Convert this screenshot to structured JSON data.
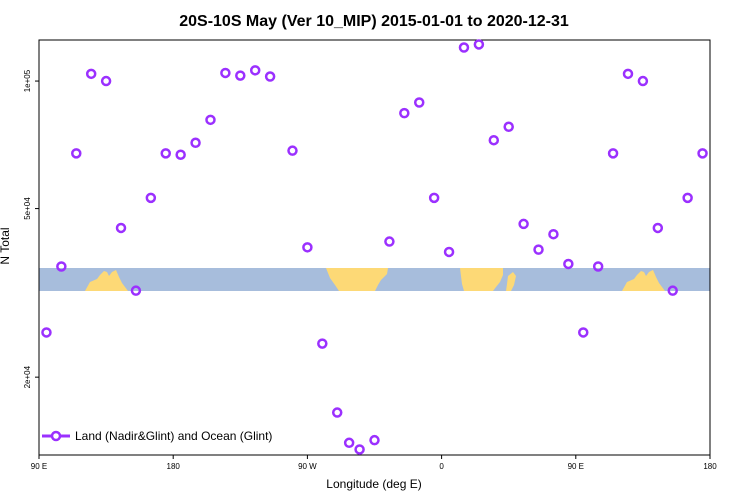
{
  "chart_data": {
    "type": "scatter",
    "title": "20S-10S May (Ver 10_MIP)   2015-01-01 to 2020-12-31",
    "xlabel": "Longitude (deg E)",
    "ylabel": "N Total",
    "x_scale": "linear",
    "y_scale": "log",
    "xlim": [
      90,
      540
    ],
    "ylim": [
      13100,
      125000
    ],
    "x_ticks": [
      {
        "value": 90,
        "label": "90 E"
      },
      {
        "value": 180,
        "label": "180"
      },
      {
        "value": 270,
        "label": "90 W"
      },
      {
        "value": 360,
        "label": "0"
      },
      {
        "value": 450,
        "label": "90 E"
      },
      {
        "value": 540,
        "label": "180"
      }
    ],
    "y_ticks": [
      {
        "value": 20000,
        "label": "2e+04"
      },
      {
        "value": 50000,
        "label": "5e+04"
      },
      {
        "value": 100000,
        "label": "1e+05"
      }
    ],
    "grid": false,
    "legend_position": "bottom-left",
    "series": [
      {
        "name": "Land (Nadir&Glint) and Ocean (Glint)",
        "color": "#9b30ff",
        "marker": "open-circle",
        "points": [
          [
            95,
            25500
          ],
          [
            105,
            36500
          ],
          [
            115,
            67500
          ],
          [
            125,
            104000
          ],
          [
            135,
            100000
          ],
          [
            145,
            45000
          ],
          [
            155,
            32000
          ],
          [
            165,
            53000
          ],
          [
            175,
            67500
          ],
          [
            185,
            67000
          ],
          [
            195,
            71500
          ],
          [
            205,
            81000
          ],
          [
            215,
            104500
          ],
          [
            225,
            103000
          ],
          [
            235,
            106000
          ],
          [
            245,
            102500
          ],
          [
            260,
            68500
          ],
          [
            270,
            40500
          ],
          [
            280,
            24000
          ],
          [
            290,
            16500
          ],
          [
            298,
            14000
          ],
          [
            305,
            13500
          ],
          [
            315,
            14200
          ],
          [
            325,
            41800
          ],
          [
            335,
            84000
          ],
          [
            345,
            89000
          ],
          [
            355,
            53000
          ],
          [
            365,
            39500
          ],
          [
            375,
            120000
          ],
          [
            385,
            122000
          ],
          [
            395,
            72500
          ],
          [
            405,
            78000
          ],
          [
            415,
            46000
          ],
          [
            425,
            40000
          ],
          [
            435,
            43500
          ],
          [
            445,
            37000
          ],
          [
            455,
            25500
          ],
          [
            465,
            36500
          ],
          [
            475,
            67500
          ],
          [
            485,
            104000
          ],
          [
            495,
            100000
          ],
          [
            505,
            45000
          ],
          [
            515,
            32000
          ],
          [
            525,
            53000
          ],
          [
            535,
            67500
          ]
        ]
      }
    ]
  },
  "map_strip": {
    "ocean_color": "#a7bddc",
    "land_color": "#fdd976"
  }
}
